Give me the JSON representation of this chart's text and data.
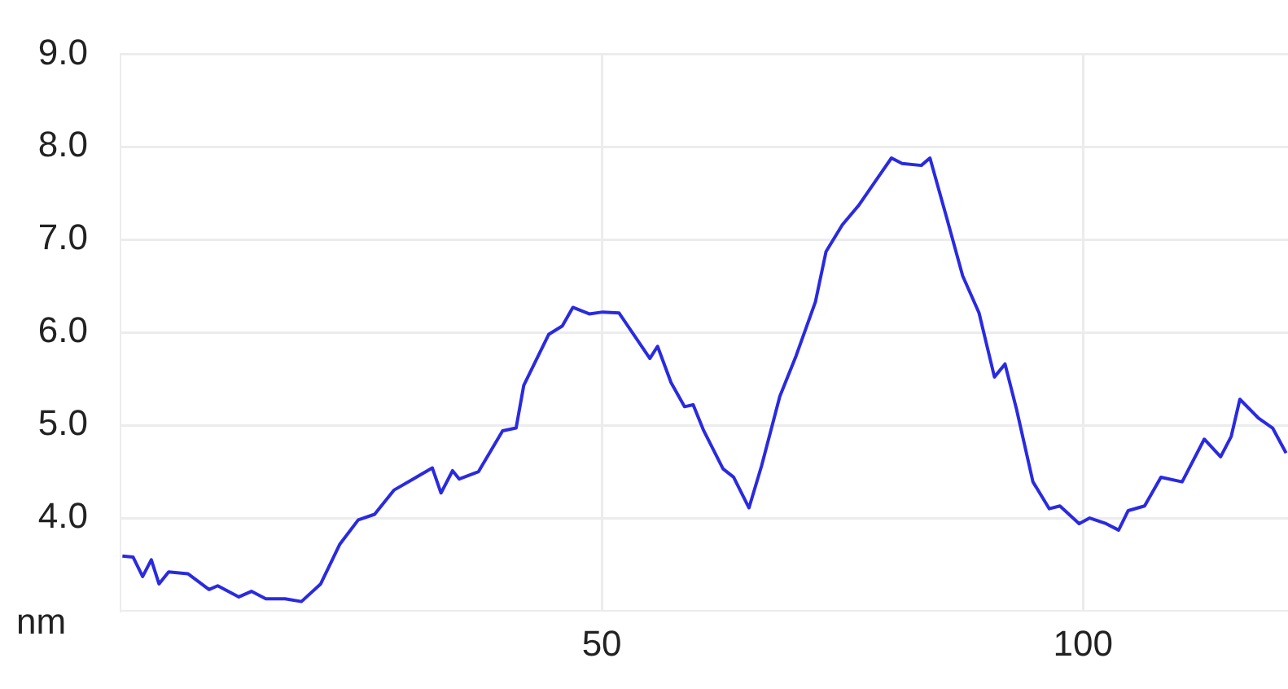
{
  "chart_data": {
    "type": "line",
    "ylabel": "nm",
    "xlim": [
      0,
      121.3
    ],
    "xticks": [
      50,
      100
    ],
    "ylim": [
      3,
      9
    ],
    "yticks": [
      {
        "value": 4,
        "label": "4.0"
      },
      {
        "value": 5,
        "label": "5.0"
      },
      {
        "value": 6,
        "label": "6.0"
      },
      {
        "value": 7,
        "label": "7.0"
      },
      {
        "value": 8,
        "label": "8.0"
      },
      {
        "value": 9,
        "label": "9.0"
      }
    ],
    "grid": true,
    "legend": false,
    "marker": "none",
    "line_style": "solid",
    "series": [
      {
        "color": "#2a2ae0",
        "x": [
          0.2,
          1.3,
          2.3,
          3.2,
          4.0,
          5.0,
          7.0,
          9.2,
          10.1,
          12.3,
          13.6,
          15.1,
          17.1,
          18.8,
          20.8,
          22.8,
          24.7,
          26.4,
          28.4,
          30.4,
          32.4,
          33.3,
          34.5,
          35.2,
          37.2,
          39.7,
          41.1,
          41.9,
          44.5,
          45.9,
          47.0,
          48.7,
          50.1,
          51.8,
          55.0,
          55.8,
          57.2,
          58.6,
          59.5,
          60.6,
          62.6,
          63.7,
          65.3,
          66.6,
          68.5,
          70.2,
          72.2,
          73.3,
          75.0,
          76.7,
          78.7,
          80.1,
          81.2,
          83.2,
          84.1,
          85.8,
          87.5,
          89.2,
          90.8,
          91.9,
          93.1,
          94.8,
          96.5,
          97.6,
          99.6,
          100.7,
          102.4,
          103.7,
          104.7,
          106.4,
          108.1,
          110.3,
          112.6,
          114.3,
          115.4,
          116.3,
          118.2,
          119.7,
          121.1
        ],
        "values": [
          3.59,
          3.58,
          3.37,
          3.55,
          3.29,
          3.42,
          3.4,
          3.23,
          3.27,
          3.15,
          3.21,
          3.13,
          3.13,
          3.1,
          3.29,
          3.72,
          3.98,
          4.04,
          4.3,
          4.42,
          4.54,
          4.27,
          4.51,
          4.42,
          4.5,
          4.94,
          4.97,
          5.43,
          5.98,
          6.07,
          6.27,
          6.2,
          6.22,
          6.21,
          5.72,
          5.85,
          5.46,
          5.2,
          5.22,
          4.94,
          4.53,
          4.44,
          4.11,
          4.56,
          5.31,
          5.75,
          6.33,
          6.87,
          7.16,
          7.37,
          7.67,
          7.88,
          7.82,
          7.8,
          7.88,
          7.25,
          6.61,
          6.21,
          5.52,
          5.66,
          5.17,
          4.39,
          4.1,
          4.13,
          3.94,
          4.0,
          3.94,
          3.87,
          4.08,
          4.13,
          4.44,
          4.39,
          4.85,
          4.66,
          4.88,
          5.28,
          5.08,
          4.97,
          4.7
        ]
      }
    ]
  }
}
